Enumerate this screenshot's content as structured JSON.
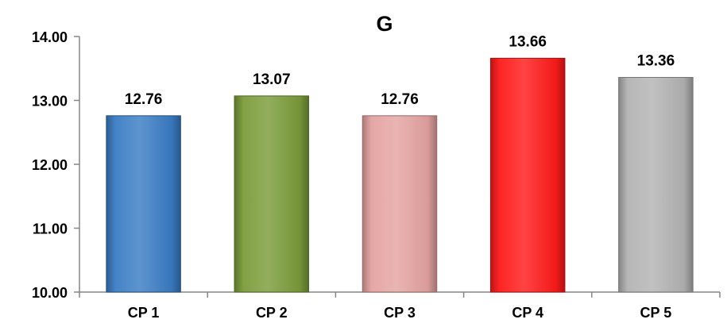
{
  "chart_data": {
    "type": "bar",
    "title": "G",
    "categories": [
      "CP 1",
      "CP 2",
      "CP 3",
      "CP 4",
      "CP 5"
    ],
    "values": [
      12.76,
      13.07,
      12.76,
      13.66,
      13.36
    ],
    "data_labels": [
      "12.76",
      "13.07",
      "12.76",
      "13.66",
      "13.36"
    ],
    "y_tick_labels": [
      "10.00",
      "11.00",
      "12.00",
      "13.00",
      "14.00"
    ],
    "ylim": [
      10,
      14
    ],
    "xlabel": "",
    "ylabel": "",
    "grid": false,
    "legend": "none",
    "colors": [
      "#3a7cc4",
      "#7a9c3a",
      "#e4a3a1",
      "#ff1a1a",
      "#b3b3b3"
    ]
  }
}
